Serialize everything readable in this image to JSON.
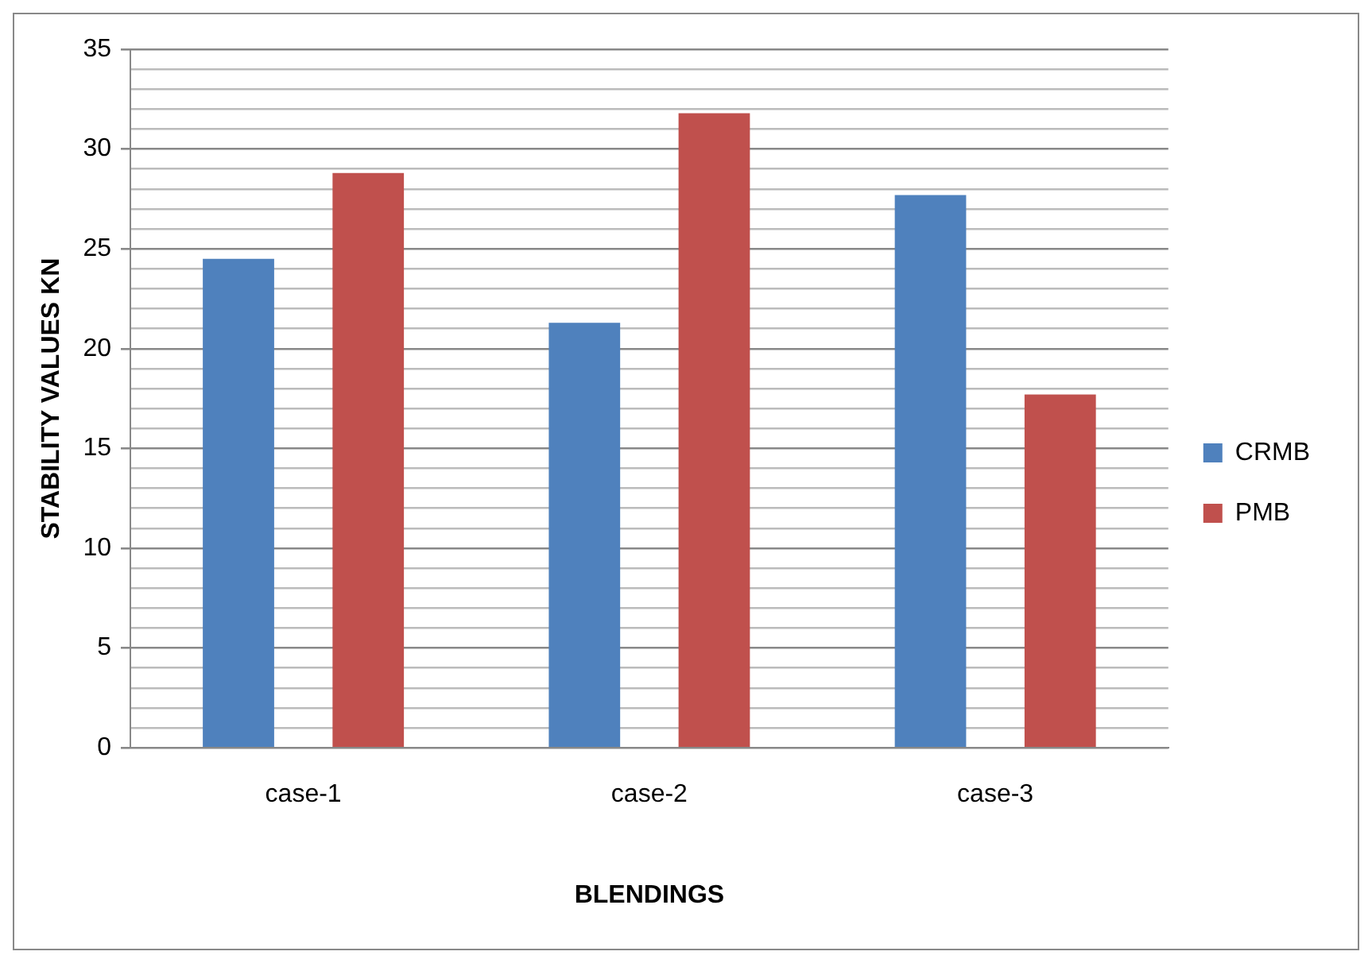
{
  "chart_data": {
    "type": "bar",
    "xlabel": "BLENDINGS",
    "ylabel": "STABILITY VALUES KN",
    "categories": [
      "case-1",
      "case-2",
      "case-3"
    ],
    "series": [
      {
        "name": "CRMB",
        "color": "#4f81bd",
        "values": [
          24.5,
          21.3,
          27.7
        ]
      },
      {
        "name": "PMB",
        "color": "#c0504d",
        "values": [
          28.8,
          31.8,
          17.7
        ]
      }
    ],
    "ylim": [
      0,
      35
    ],
    "yticks": [
      0,
      {
        "value": 1,
        "label": null
      },
      {
        "value": 2,
        "label": null
      },
      {
        "value": 3,
        "label": null
      },
      {
        "value": 4,
        "label": null
      },
      5,
      {
        "value": 6,
        "label": null
      },
      {
        "value": 7,
        "label": null
      },
      {
        "value": 8,
        "label": null
      },
      {
        "value": 9,
        "label": null
      },
      10,
      {
        "value": 11,
        "label": null
      },
      {
        "value": 12,
        "label": null
      },
      {
        "value": 13,
        "label": null
      },
      {
        "value": 14,
        "label": null
      },
      15,
      {
        "value": 16,
        "label": null
      },
      {
        "value": 17,
        "label": null
      },
      {
        "value": 18,
        "label": null
      },
      {
        "value": 19,
        "label": null
      },
      20,
      {
        "value": 21,
        "label": null
      },
      {
        "value": 22,
        "label": null
      },
      {
        "value": 23,
        "label": null
      },
      {
        "value": 24,
        "label": null
      },
      25,
      {
        "value": 26,
        "label": null
      },
      {
        "value": 27,
        "label": null
      },
      {
        "value": 28,
        "label": null
      },
      {
        "value": 29,
        "label": null
      },
      30,
      {
        "value": 31,
        "label": null
      },
      {
        "value": 32,
        "label": null
      },
      {
        "value": 33,
        "label": null
      },
      {
        "value": 34,
        "label": null
      },
      35
    ],
    "grid": "y",
    "legend": "right"
  }
}
